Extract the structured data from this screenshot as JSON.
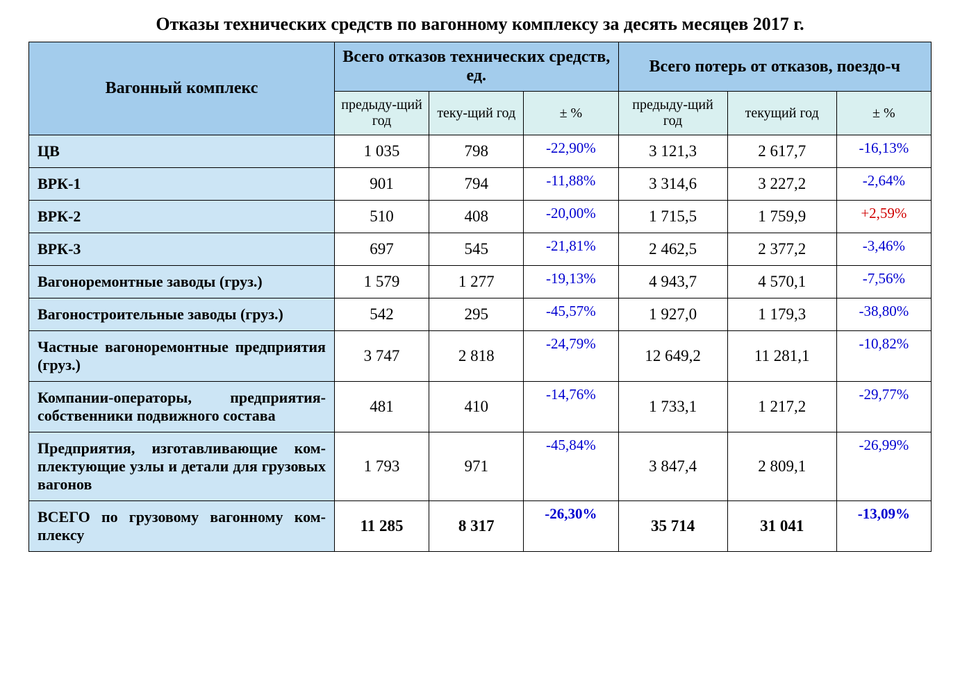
{
  "title": "Отказы технических средств по вагонному комплексу за десять месяцев 2017 г.",
  "headers": {
    "main": "Вагонный комплекс",
    "group1": "Всего отказов технических средств, ед.",
    "group2": "Всего потерь от отказов, поездо-ч",
    "sub_prev": "предыду-щий год",
    "sub_curr1": "теку-щий год",
    "sub_curr2": "текущий год",
    "sub_pct": "± %"
  },
  "rows": [
    {
      "label": "ЦВ",
      "justify": false,
      "f_prev": "1 035",
      "f_curr": "798",
      "f_pct": "-22,90%",
      "f_sign": "neg",
      "l_prev": "3 121,3",
      "l_curr": "2 617,7",
      "l_pct": "-16,13%",
      "l_sign": "neg"
    },
    {
      "label": "ВРК-1",
      "justify": false,
      "f_prev": "901",
      "f_curr": "794",
      "f_pct": "-11,88%",
      "f_sign": "neg",
      "l_prev": "3 314,6",
      "l_curr": "3 227,2",
      "l_pct": "-2,64%",
      "l_sign": "neg"
    },
    {
      "label": "ВРК-2",
      "justify": false,
      "f_prev": "510",
      "f_curr": "408",
      "f_pct": "-20,00%",
      "f_sign": "neg",
      "l_prev": "1 715,5",
      "l_curr": "1 759,9",
      "l_pct": "+2,59%",
      "l_sign": "pos"
    },
    {
      "label": "ВРК-3",
      "justify": false,
      "f_prev": "697",
      "f_curr": "545",
      "f_pct": "-21,81%",
      "f_sign": "neg",
      "l_prev": "2 462,5",
      "l_curr": "2 377,2",
      "l_pct": "-3,46%",
      "l_sign": "neg"
    },
    {
      "label": "Вагоноремонтные заводы (груз.)",
      "justify": false,
      "f_prev": "1 579",
      "f_curr": "1 277",
      "f_pct": "-19,13%",
      "f_sign": "neg",
      "l_prev": "4 943,7",
      "l_curr": "4 570,1",
      "l_pct": "-7,56%",
      "l_sign": "neg"
    },
    {
      "label": "Вагоностроительные заводы (груз.)",
      "justify": false,
      "f_prev": "542",
      "f_curr": "295",
      "f_pct": "-45,57%",
      "f_sign": "neg",
      "l_prev": "1 927,0",
      "l_curr": "1 179,3",
      "l_pct": "-38,80%",
      "l_sign": "neg"
    },
    {
      "label": "Частные вагоноремонтные предпри­ятия (груз.)",
      "justify": true,
      "f_prev": "3 747",
      "f_curr": "2 818",
      "f_pct": "-24,79%",
      "f_sign": "neg",
      "l_prev": "12 649,2",
      "l_curr": "11 281,1",
      "l_pct": "-10,82%",
      "l_sign": "neg"
    },
    {
      "label": "Компании-операторы, предприятия-собственники подвижного состава",
      "justify": true,
      "f_prev": "481",
      "f_curr": "410",
      "f_pct": "-14,76%",
      "f_sign": "neg",
      "l_prev": "1 733,1",
      "l_curr": "1 217,2",
      "l_pct": "-29,77%",
      "l_sign": "neg"
    },
    {
      "label": "Предприятия, изготавливающие ком­плектующие узлы и детали для грузо­вых вагонов",
      "justify": true,
      "f_prev": "1 793",
      "f_curr": "971",
      "f_pct": "-45,84%",
      "f_sign": "neg",
      "l_prev": "3 847,4",
      "l_curr": "2 809,1",
      "l_pct": "-26,99%",
      "l_sign": "neg"
    }
  ],
  "total": {
    "label": "ВСЕГО по грузовому вагонному ком­плексу",
    "justify": true,
    "f_prev": "11 285",
    "f_curr": "8 317",
    "f_pct": "-26,30%",
    "f_sign": "neg",
    "l_prev": "35 714",
    "l_curr": "31 041",
    "l_pct": "-13,09%",
    "l_sign": "neg"
  },
  "colors": {
    "header_bg": "#a3ccec",
    "subheader_bg": "#d9f0f0",
    "rowlabel_bg": "#cce5f5",
    "neg": "#0000d0",
    "pos": "#d00000",
    "border": "#000000",
    "background": "#ffffff"
  }
}
